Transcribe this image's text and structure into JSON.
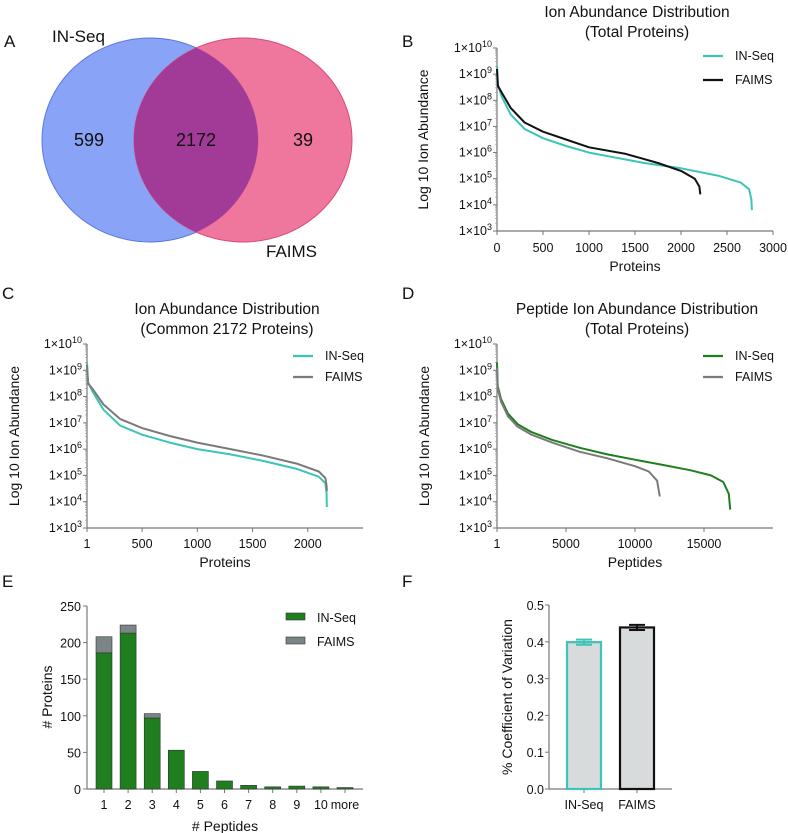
{
  "colors": {
    "inseq_teal": "#3cc4b8",
    "faims_black": "#111111",
    "faims_gray": "#7a7a7a",
    "inseq_green": "#1f7f1f",
    "faims_bar_gray": "#7b8585",
    "venn_blue": "#6f8ff5",
    "venn_pink": "#ec5f8c",
    "venn_overlap": "#a23a98",
    "cv_bar_fill": "#d7dbdb"
  },
  "chart_data": [
    {
      "panel": "A",
      "type": "venn",
      "sets": [
        {
          "name": "IN-Seq",
          "only": 599
        },
        {
          "name": "FAIMS",
          "only": 39
        }
      ],
      "intersection": 2172,
      "labels": {
        "only_a": "599",
        "both": "2172",
        "only_b": "39"
      }
    },
    {
      "panel": "B",
      "type": "line",
      "title": [
        "Ion Abundance Distribution",
        "(Total Proteins)"
      ],
      "xlabel": "Proteins",
      "ylabel": "Log 10 Ion Abundance",
      "yscale": "log",
      "xlim": [
        0,
        3000
      ],
      "ylim_log10": [
        3,
        10
      ],
      "xticks": [
        "0",
        "500",
        "1000",
        "1500",
        "2000",
        "2500",
        "3000"
      ],
      "xtick_values": [
        0,
        500,
        1000,
        1500,
        2000,
        2500,
        3000
      ],
      "yticks": [
        "1×10",
        "1×10",
        "1×10",
        "1×10",
        "1×10",
        "1×10",
        "1×10",
        "1×10"
      ],
      "ytick_exponents": [
        "3",
        "4",
        "5",
        "6",
        "7",
        "8",
        "9",
        "10"
      ],
      "legend": "top-right",
      "series": [
        {
          "name": "IN-Seq",
          "color_key": "inseq_teal",
          "x": [
            0,
            10,
            50,
            150,
            300,
            500,
            750,
            1000,
            1300,
            1600,
            2000,
            2400,
            2650,
            2740,
            2765,
            2771
          ],
          "log10_y": [
            9.3,
            8.6,
            8.15,
            7.45,
            6.9,
            6.55,
            6.25,
            6.0,
            5.8,
            5.6,
            5.4,
            5.12,
            4.85,
            4.6,
            4.2,
            3.8
          ]
        },
        {
          "name": "FAIMS",
          "color_key": "faims_black",
          "x": [
            0,
            10,
            50,
            150,
            300,
            500,
            750,
            1000,
            1400,
            1750,
            2000,
            2150,
            2200,
            2210
          ],
          "log10_y": [
            9.2,
            8.55,
            8.3,
            7.7,
            7.15,
            6.8,
            6.5,
            6.2,
            5.95,
            5.6,
            5.3,
            5.0,
            4.7,
            4.4
          ]
        }
      ]
    },
    {
      "panel": "C",
      "type": "line",
      "title": [
        "Ion Abundance Distribution",
        "(Common 2172 Proteins)"
      ],
      "xlabel": "Proteins",
      "ylabel": "Log 10 Ion Abundance",
      "yscale": "log",
      "xlim": [
        1,
        2500
      ],
      "ylim_log10": [
        3,
        10
      ],
      "xticks": [
        "1",
        "500",
        "1000",
        "1500",
        "2000"
      ],
      "xtick_values": [
        1,
        500,
        1000,
        1500,
        2000
      ],
      "yticks": [
        "1×10",
        "1×10",
        "1×10",
        "1×10",
        "1×10",
        "1×10",
        "1×10",
        "1×10"
      ],
      "ytick_exponents": [
        "3",
        "4",
        "5",
        "6",
        "7",
        "8",
        "9",
        "10"
      ],
      "legend": "top-right",
      "series": [
        {
          "name": "IN-Seq",
          "color_key": "inseq_teal",
          "x": [
            1,
            10,
            50,
            150,
            300,
            500,
            750,
            1000,
            1300,
            1600,
            1900,
            2100,
            2160,
            2170,
            2172
          ],
          "log10_y": [
            9.3,
            8.55,
            8.2,
            7.5,
            6.9,
            6.55,
            6.25,
            6.0,
            5.8,
            5.55,
            5.25,
            4.95,
            4.7,
            4.3,
            3.8
          ]
        },
        {
          "name": "FAIMS",
          "color_key": "faims_gray",
          "x": [
            1,
            10,
            50,
            150,
            300,
            500,
            750,
            1000,
            1300,
            1600,
            1900,
            2100,
            2160,
            2170,
            2172
          ],
          "log10_y": [
            9.2,
            8.5,
            8.3,
            7.7,
            7.15,
            6.8,
            6.5,
            6.25,
            6.0,
            5.75,
            5.45,
            5.15,
            4.9,
            4.6,
            4.4
          ]
        }
      ]
    },
    {
      "panel": "D",
      "type": "line",
      "title": [
        "Peptide Ion Abundance Distribution",
        "(Total Proteins)"
      ],
      "xlabel": "Peptides",
      "ylabel": "Log 10 Ion Abundance",
      "yscale": "log",
      "xlim": [
        1,
        20000
      ],
      "ylim_log10": [
        3,
        10
      ],
      "xticks": [
        "1",
        "5000",
        "10000",
        "15000"
      ],
      "xtick_values": [
        1,
        5000,
        10000,
        15000
      ],
      "yticks": [
        "1×10",
        "1×10",
        "1×10",
        "1×10",
        "1×10",
        "1×10",
        "1×10",
        "1×10"
      ],
      "ytick_exponents": [
        "3",
        "4",
        "5",
        "6",
        "7",
        "8",
        "9",
        "10"
      ],
      "legend": "top-right",
      "series": [
        {
          "name": "IN-Seq",
          "color_key": "inseq_green",
          "x": [
            1,
            50,
            300,
            800,
            1500,
            2500,
            4000,
            6000,
            8000,
            10000,
            12000,
            14000,
            15500,
            16400,
            16800,
            16900
          ],
          "log10_y": [
            9.3,
            8.4,
            7.9,
            7.35,
            6.95,
            6.65,
            6.35,
            6.05,
            5.8,
            5.6,
            5.4,
            5.2,
            5.0,
            4.75,
            4.3,
            3.7
          ]
        },
        {
          "name": "FAIMS",
          "color_key": "faims_gray",
          "x": [
            1,
            50,
            300,
            800,
            1500,
            2500,
            4000,
            6000,
            8000,
            10000,
            11000,
            11600,
            11800
          ],
          "log10_y": [
            9.1,
            8.3,
            7.8,
            7.25,
            6.85,
            6.55,
            6.25,
            5.9,
            5.65,
            5.35,
            5.15,
            4.8,
            4.2
          ]
        }
      ]
    },
    {
      "panel": "E",
      "type": "bar",
      "stacked": true,
      "xlabel": "# Peptides",
      "ylabel": "# Proteins",
      "ylim": [
        0,
        250
      ],
      "yticks": [
        "0",
        "50",
        "100",
        "150",
        "200",
        "250"
      ],
      "ytick_values": [
        0,
        50,
        100,
        150,
        200,
        250
      ],
      "categories": [
        "1",
        "2",
        "3",
        "4",
        "5",
        "6",
        "7",
        "8",
        "9",
        "10",
        "more"
      ],
      "legend": "top-right",
      "series": [
        {
          "name": "IN-Seq",
          "color_key": "inseq_green",
          "values": [
            186,
            213,
            97,
            53,
            24,
            11,
            5,
            3,
            4,
            3,
            2
          ]
        },
        {
          "name": "FAIMS",
          "color_key": "faims_bar_gray",
          "values": [
            22,
            11,
            6,
            0,
            0,
            0,
            0,
            0,
            0,
            0,
            0
          ]
        }
      ]
    },
    {
      "panel": "F",
      "type": "bar",
      "ylabel": "% Coefficient of Variation",
      "ylim": [
        0,
        0.5
      ],
      "yticks": [
        "0.0",
        "0.1",
        "0.2",
        "0.3",
        "0.4",
        "0.5"
      ],
      "ytick_values": [
        0,
        0.1,
        0.2,
        0.3,
        0.4,
        0.5
      ],
      "categories": [
        "IN-Seq",
        "FAIMS"
      ],
      "values": [
        0.399,
        0.439
      ],
      "errors": [
        0.007,
        0.007
      ],
      "edge_color_keys": [
        "inseq_teal",
        "faims_black"
      ]
    }
  ],
  "panel_letters": {
    "A": "A",
    "B": "B",
    "C": "C",
    "D": "D",
    "E": "E",
    "F": "F"
  }
}
